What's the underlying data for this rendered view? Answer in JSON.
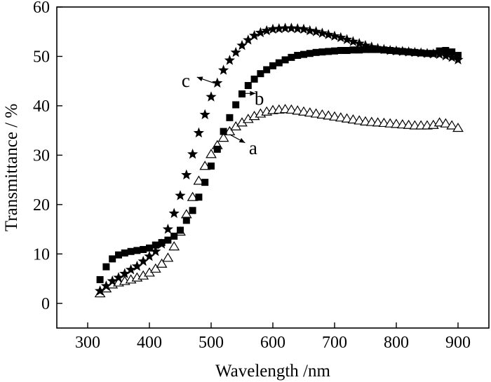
{
  "chart_data": {
    "type": "scatter",
    "title": "",
    "xlabel": "Wavelength /nm",
    "ylabel": "Transmittance / %",
    "xlim": [
      250,
      950
    ],
    "ylim": [
      -5,
      60
    ],
    "xticks": [
      300,
      400,
      500,
      600,
      700,
      800,
      900
    ],
    "yticks": [
      0,
      10,
      20,
      30,
      40,
      50,
      60
    ],
    "grid": false,
    "legend": "none",
    "series": [
      {
        "name": "a",
        "marker": "open-triangle",
        "color": "#000000",
        "x": [
          320,
          330,
          340,
          350,
          360,
          370,
          380,
          390,
          400,
          410,
          420,
          430,
          440,
          450,
          460,
          470,
          480,
          490,
          500,
          510,
          520,
          530,
          540,
          550,
          560,
          570,
          580,
          590,
          600,
          610,
          620,
          630,
          640,
          650,
          660,
          670,
          680,
          690,
          700,
          710,
          720,
          730,
          740,
          750,
          760,
          770,
          780,
          790,
          800,
          810,
          820,
          830,
          840,
          850,
          860,
          870,
          880,
          890,
          900
        ],
        "y": [
          2.0,
          3.0,
          3.8,
          4.2,
          4.5,
          4.8,
          5.2,
          5.6,
          6.2,
          7.0,
          8.0,
          9.2,
          11.5,
          14.5,
          18.0,
          21.5,
          24.8,
          27.8,
          30.2,
          32.0,
          33.5,
          34.8,
          35.8,
          36.6,
          37.3,
          37.9,
          38.4,
          38.8,
          39.1,
          39.2,
          39.3,
          39.2,
          39.0,
          38.8,
          38.6,
          38.4,
          38.2,
          38.0,
          37.8,
          37.6,
          37.4,
          37.2,
          37.0,
          36.8,
          36.7,
          36.6,
          36.5,
          36.4,
          36.3,
          36.2,
          36.1,
          36.0,
          36.0,
          36.0,
          36.1,
          36.6,
          36.4,
          36.0,
          35.5
        ]
      },
      {
        "name": "b",
        "marker": "filled-square",
        "color": "#000000",
        "x": [
          320,
          330,
          340,
          350,
          360,
          370,
          380,
          390,
          400,
          410,
          420,
          430,
          440,
          450,
          460,
          470,
          480,
          490,
          500,
          510,
          520,
          530,
          540,
          550,
          560,
          570,
          580,
          590,
          600,
          610,
          620,
          630,
          640,
          650,
          660,
          670,
          680,
          690,
          700,
          710,
          720,
          730,
          740,
          750,
          760,
          770,
          780,
          790,
          800,
          810,
          820,
          830,
          840,
          850,
          860,
          870,
          880,
          890,
          900
        ],
        "y": [
          4.8,
          7.4,
          9.0,
          9.8,
          10.2,
          10.5,
          10.7,
          10.9,
          11.2,
          11.8,
          12.3,
          12.8,
          13.6,
          14.8,
          16.8,
          18.8,
          21.5,
          24.5,
          27.8,
          31.2,
          34.8,
          37.6,
          40.2,
          42.4,
          44.1,
          45.4,
          46.5,
          47.3,
          48.1,
          48.7,
          49.3,
          49.8,
          50.2,
          50.4,
          50.6,
          50.8,
          50.9,
          51.0,
          51.1,
          51.2,
          51.2,
          51.3,
          51.3,
          51.4,
          51.4,
          51.4,
          51.3,
          51.2,
          51.1,
          51.0,
          50.9,
          50.8,
          50.7,
          50.6,
          50.6,
          51.1,
          51.2,
          50.9,
          50.2
        ]
      },
      {
        "name": "c",
        "marker": "filled-star",
        "color": "#000000",
        "x": [
          320,
          330,
          340,
          350,
          360,
          370,
          380,
          390,
          400,
          410,
          420,
          430,
          440,
          450,
          460,
          470,
          480,
          490,
          500,
          510,
          520,
          530,
          540,
          550,
          560,
          570,
          580,
          590,
          600,
          610,
          620,
          630,
          640,
          650,
          660,
          670,
          680,
          690,
          700,
          710,
          720,
          730,
          740,
          750,
          760,
          770,
          780,
          790,
          800,
          810,
          820,
          830,
          840,
          850,
          860,
          870,
          880,
          890,
          900
        ],
        "y": [
          2.5,
          3.5,
          4.5,
          5.2,
          6.0,
          6.8,
          7.5,
          8.5,
          9.5,
          10.5,
          12.0,
          15.0,
          18.2,
          21.8,
          26.0,
          30.2,
          34.5,
          38.2,
          41.8,
          44.6,
          47.2,
          49.2,
          50.8,
          52.2,
          53.3,
          54.2,
          54.8,
          55.2,
          55.5,
          55.6,
          55.7,
          55.7,
          55.6,
          55.5,
          55.2,
          55.0,
          54.7,
          54.4,
          54.1,
          53.8,
          53.4,
          53.0,
          52.6,
          52.2,
          51.9,
          51.6,
          51.4,
          51.2,
          51.1,
          51.0,
          50.9,
          50.8,
          50.7,
          50.6,
          50.5,
          50.4,
          50.1,
          49.8,
          49.3
        ]
      }
    ],
    "annotations": [
      {
        "text": "a",
        "series": "a"
      },
      {
        "text": "b",
        "series": "b"
      },
      {
        "text": "c",
        "series": "c"
      }
    ]
  }
}
